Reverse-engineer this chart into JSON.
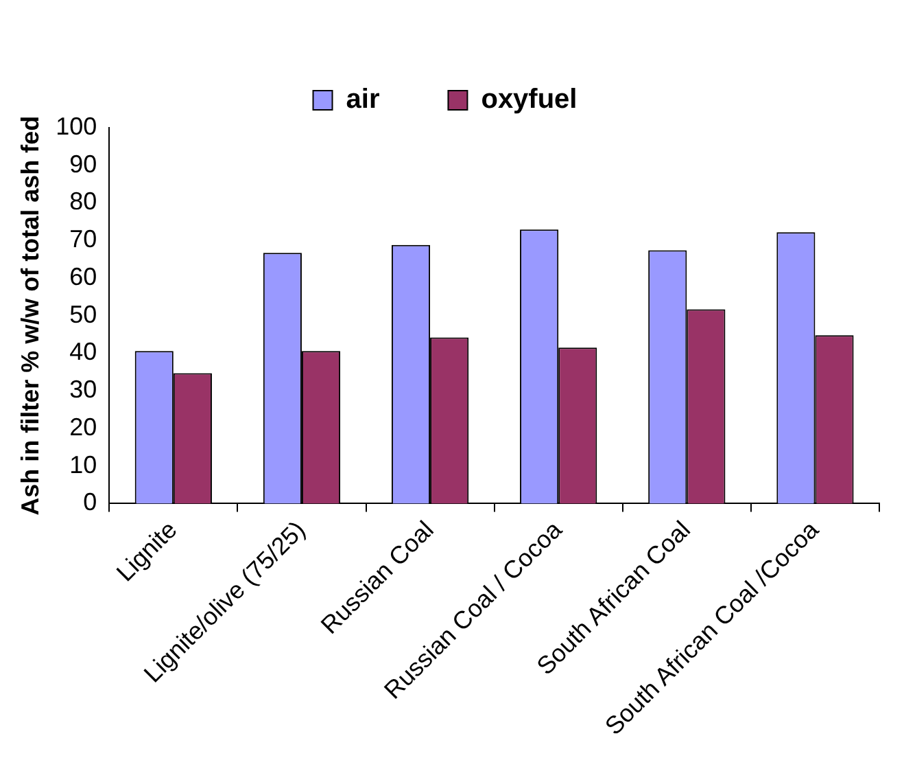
{
  "chart_data": {
    "type": "bar",
    "ylabel": "Ash in filter % w/w of total ash fed",
    "categories": [
      "Lignite",
      "Lignite/olive (75/25)",
      "Russian Coal",
      "Russian Coal / Cocoa",
      "South African Coal",
      "South African Coal /Cocoa"
    ],
    "series": [
      {
        "name": "air",
        "color": "#9999ff",
        "values": [
          40.6,
          66.7,
          68.8,
          72.9,
          67.4,
          72.2
        ]
      },
      {
        "name": "oxyfuel",
        "color": "#993366",
        "values": [
          34.7,
          40.6,
          44.2,
          41.5,
          51.7,
          44.8
        ]
      }
    ],
    "ylim": [
      0,
      100
    ],
    "yticks": [
      0,
      10,
      20,
      30,
      40,
      50,
      60,
      70,
      80,
      90,
      100
    ],
    "grid": false,
    "legend": "top"
  }
}
